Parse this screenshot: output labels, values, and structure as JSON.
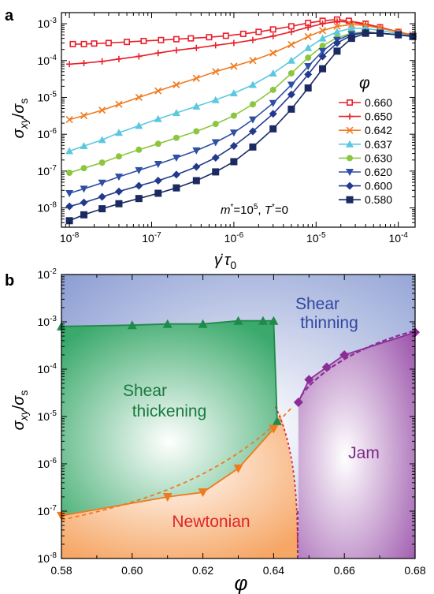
{
  "chart_data": [
    {
      "panel": "a",
      "type": "line",
      "ylabel": "σxy/σs",
      "xlabel": "γ̇τ0",
      "xscale": "log",
      "yscale": "log",
      "xlim": [
        8e-09,
        0.00016
      ],
      "ylim": [
        3e-09,
        0.002
      ],
      "xticks": [
        "10-8",
        "10-7",
        "10-6",
        "10-5",
        "10-4"
      ],
      "yticks": [
        "10-8",
        "10-7",
        "10-6",
        "10-5",
        "10-4",
        "10-3"
      ],
      "annotation": "m* =10^5, T* =0",
      "legend_title": "φ",
      "legend_position": "right",
      "series": [
        {
          "name": "0.660",
          "color": "#e8202a",
          "marker": "square-open",
          "points": [
            [
              1.1e-08,
              0.00028
            ],
            [
              1.5e-08,
              0.00028
            ],
            [
              2e-08,
              0.00029
            ],
            [
              3e-08,
              0.0003
            ],
            [
              5e-08,
              0.00032
            ],
            [
              8e-08,
              0.00034
            ],
            [
              1.3e-07,
              0.00036
            ],
            [
              2e-07,
              0.00038
            ],
            [
              3e-07,
              0.0004
            ],
            [
              5e-07,
              0.00043
            ],
            [
              8e-07,
              0.00047
            ],
            [
              1.3e-06,
              0.00053
            ],
            [
              2e-06,
              0.0006
            ],
            [
              3e-06,
              0.0007
            ],
            [
              5e-06,
              0.00085
            ],
            [
              8e-06,
              0.00105
            ],
            [
              1.2e-05,
              0.0012
            ],
            [
              1.8e-05,
              0.0013
            ],
            [
              2.5e-05,
              0.0012
            ],
            [
              4e-05,
              0.001
            ],
            [
              6e-05,
              0.0008
            ],
            [
              0.0001,
              0.0006
            ],
            [
              0.00015,
              0.00045
            ]
          ]
        },
        {
          "name": "0.650",
          "color": "#e8202a",
          "marker": "plus",
          "points": [
            [
              1e-08,
              8e-05
            ],
            [
              1.5e-08,
              8.5e-05
            ],
            [
              2.5e-08,
              9.5e-05
            ],
            [
              4e-08,
              0.00011
            ],
            [
              7e-08,
              0.00013
            ],
            [
              1.2e-07,
              0.00016
            ],
            [
              2e-07,
              0.00019
            ],
            [
              3.5e-07,
              0.00022
            ],
            [
              6e-07,
              0.00026
            ],
            [
              1e-06,
              0.0003
            ],
            [
              1.7e-06,
              0.00036
            ],
            [
              3e-06,
              0.00046
            ],
            [
              5e-06,
              0.0006
            ],
            [
              8e-06,
              0.0008
            ],
            [
              1.2e-05,
              0.001
            ],
            [
              1.8e-05,
              0.00115
            ],
            [
              2.7e-05,
              0.0011
            ],
            [
              4e-05,
              0.00095
            ],
            [
              6e-05,
              0.0008
            ],
            [
              0.0001,
              0.0006
            ],
            [
              0.00015,
              0.00045
            ]
          ]
        },
        {
          "name": "0.642",
          "color": "#f07a1e",
          "marker": "x",
          "points": [
            [
              1e-08,
              2.5e-06
            ],
            [
              1.5e-08,
              3.2e-06
            ],
            [
              2.5e-08,
              4.5e-06
            ],
            [
              4e-08,
              6.5e-06
            ],
            [
              7e-08,
              1e-05
            ],
            [
              1.2e-07,
              1.5e-05
            ],
            [
              2e-07,
              2.2e-05
            ],
            [
              3.5e-07,
              3.3e-05
            ],
            [
              6e-07,
              5e-05
            ],
            [
              1e-06,
              7e-05
            ],
            [
              1.7e-06,
              0.0001
            ],
            [
              3e-06,
              0.00016
            ],
            [
              5e-06,
              0.00027
            ],
            [
              8e-06,
              0.00045
            ],
            [
              1.2e-05,
              0.00065
            ],
            [
              1.8e-05,
              0.00085
            ],
            [
              2.7e-05,
              0.00095
            ],
            [
              4e-05,
              0.0009
            ],
            [
              6e-05,
              0.00075
            ],
            [
              0.0001,
              0.0006
            ],
            [
              0.00015,
              0.0005
            ]
          ]
        },
        {
          "name": "0.637",
          "color": "#5bc8e0",
          "marker": "triangle",
          "points": [
            [
              1e-08,
              3.5e-07
            ],
            [
              1.5e-08,
              4.8e-07
            ],
            [
              2.5e-08,
              7e-07
            ],
            [
              4e-08,
              1.1e-06
            ],
            [
              7e-08,
              1.7e-06
            ],
            [
              1.2e-07,
              2.6e-06
            ],
            [
              2e-07,
              3.8e-06
            ],
            [
              3.5e-07,
              5.7e-06
            ],
            [
              6e-07,
              8.5e-06
            ],
            [
              1e-06,
              1.3e-05
            ],
            [
              1.7e-06,
              2.2e-05
            ],
            [
              3e-06,
              4.5e-05
            ],
            [
              5e-06,
              0.0001
            ],
            [
              8e-06,
              0.00022
            ],
            [
              1.2e-05,
              0.0004
            ],
            [
              1.8e-05,
              0.0006
            ],
            [
              2.7e-05,
              0.00075
            ],
            [
              4e-05,
              0.00075
            ],
            [
              6e-05,
              0.00065
            ],
            [
              0.0001,
              0.00055
            ],
            [
              0.00015,
              0.00045
            ]
          ]
        },
        {
          "name": "0.630",
          "color": "#8cc63f",
          "marker": "circle",
          "points": [
            [
              1e-08,
              9e-08
            ],
            [
              1.5e-08,
              1.2e-07
            ],
            [
              2.5e-08,
              1.7e-07
            ],
            [
              4e-08,
              2.5e-07
            ],
            [
              7e-08,
              3.8e-07
            ],
            [
              1.2e-07,
              5.5e-07
            ],
            [
              2e-07,
              8e-07
            ],
            [
              3.5e-07,
              1.2e-06
            ],
            [
              6e-07,
              1.9e-06
            ],
            [
              1e-06,
              3.2e-06
            ],
            [
              1.7e-06,
              6.5e-06
            ],
            [
              3e-06,
              1.6e-05
            ],
            [
              5e-06,
              4.5e-05
            ],
            [
              8e-06,
              0.00012
            ],
            [
              1.2e-05,
              0.00025
            ],
            [
              1.8e-05,
              0.00042
            ],
            [
              2.7e-05,
              0.00055
            ],
            [
              4e-05,
              0.0006
            ],
            [
              6e-05,
              0.00055
            ],
            [
              0.0001,
              0.0005
            ],
            [
              0.00015,
              0.00045
            ]
          ]
        },
        {
          "name": "0.620",
          "color": "#2e4fa3",
          "marker": "triangle-down",
          "points": [
            [
              1e-08,
              2.5e-08
            ],
            [
              1.5e-08,
              3.3e-08
            ],
            [
              2.5e-08,
              4.8e-08
            ],
            [
              4e-08,
              7e-08
            ],
            [
              7e-08,
              1.05e-07
            ],
            [
              1.2e-07,
              1.55e-07
            ],
            [
              2e-07,
              2.3e-07
            ],
            [
              3.5e-07,
              3.6e-07
            ],
            [
              6e-07,
              6e-07
            ],
            [
              1e-06,
              1.1e-06
            ],
            [
              1.7e-06,
              2.5e-06
            ],
            [
              3e-06,
              7e-06
            ],
            [
              5e-06,
              2.2e-05
            ],
            [
              8e-06,
              7e-05
            ],
            [
              1.2e-05,
              0.00018
            ],
            [
              1.8e-05,
              0.00036
            ],
            [
              2.7e-05,
              0.00052
            ],
            [
              4e-05,
              0.00058
            ],
            [
              6e-05,
              0.00055
            ],
            [
              0.0001,
              0.0005
            ],
            [
              0.00015,
              0.00045
            ]
          ]
        },
        {
          "name": "0.600",
          "color": "#233a8c",
          "marker": "diamond",
          "points": [
            [
              1e-08,
              1.1e-08
            ],
            [
              1.5e-08,
              1.4e-08
            ],
            [
              2.5e-08,
              2e-08
            ],
            [
              4e-08,
              2.8e-08
            ],
            [
              7e-08,
              4e-08
            ],
            [
              1.2e-07,
              5.5e-08
            ],
            [
              2e-07,
              8e-08
            ],
            [
              3.5e-07,
              1.3e-07
            ],
            [
              6e-07,
              2.3e-07
            ],
            [
              1e-06,
              4.8e-07
            ],
            [
              1.7e-06,
              1.2e-06
            ],
            [
              3e-06,
              3.6e-06
            ],
            [
              5e-06,
              1.2e-05
            ],
            [
              8e-06,
              4.2e-05
            ],
            [
              1.2e-05,
              0.00013
            ],
            [
              1.8e-05,
              0.0003
            ],
            [
              2.7e-05,
              0.00048
            ],
            [
              4e-05,
              0.00058
            ],
            [
              6e-05,
              0.00055
            ],
            [
              0.0001,
              0.0005
            ],
            [
              0.00015,
              0.00045
            ]
          ]
        },
        {
          "name": "0.580",
          "color": "#1b2a60",
          "marker": "square",
          "points": [
            [
              1e-08,
              4.5e-09
            ],
            [
              1.5e-08,
              6.5e-09
            ],
            [
              2.5e-08,
              9.5e-09
            ],
            [
              4e-08,
              1.3e-08
            ],
            [
              7e-08,
              1.8e-08
            ],
            [
              1.2e-07,
              2.5e-08
            ],
            [
              2e-07,
              3.5e-08
            ],
            [
              3.5e-07,
              5.5e-08
            ],
            [
              6e-07,
              9.5e-08
            ],
            [
              1e-06,
              1.8e-07
            ],
            [
              1.7e-06,
              4.5e-07
            ],
            [
              3e-06,
              1.4e-06
            ],
            [
              5e-06,
              4.8e-06
            ],
            [
              8e-06,
              1.8e-05
            ],
            [
              1.2e-05,
              6e-05
            ],
            [
              1.8e-05,
              0.00018
            ],
            [
              2.7e-05,
              0.0004
            ],
            [
              4e-05,
              0.00055
            ],
            [
              6e-05,
              0.00055
            ],
            [
              0.0001,
              0.0005
            ],
            [
              0.00015,
              0.00045
            ]
          ]
        }
      ]
    },
    {
      "panel": "b",
      "type": "line",
      "ylabel": "σxy/σs",
      "xlabel": "φ",
      "xscale": "linear",
      "yscale": "log",
      "xlim": [
        0.58,
        0.68
      ],
      "ylim": [
        1e-08,
        0.01
      ],
      "xticks": [
        "0.58",
        "0.60",
        "0.62",
        "0.64",
        "0.66",
        "0.68"
      ],
      "yticks": [
        "10-8",
        "10-7",
        "10-6",
        "10-5",
        "10-4",
        "10-3",
        "10-2"
      ],
      "regions": [
        "Shear thinning",
        "Shear thickening",
        "Newtonian",
        "Jam"
      ],
      "series": [
        {
          "label": "thickening boundary",
          "color": "#1f8a4a",
          "marker": "triangle",
          "points": [
            [
              0.58,
              0.0008
            ],
            [
              0.6,
              0.00085
            ],
            [
              0.61,
              0.0009
            ],
            [
              0.62,
              0.0009
            ],
            [
              0.63,
              0.00105
            ],
            [
              0.637,
              0.00105
            ],
            [
              0.64,
              0.00105
            ],
            [
              0.641,
              8e-06
            ]
          ]
        },
        {
          "label": "newtonian boundary",
          "color": "#f07a1e",
          "marker": "triangle-down",
          "points": [
            [
              0.58,
              8e-08
            ],
            [
              0.61,
              2e-07
            ],
            [
              0.62,
              2.5e-07
            ],
            [
              0.63,
              8e-07
            ],
            [
              0.64,
              5.5e-06
            ]
          ]
        },
        {
          "label": "jamming boundary",
          "color": "#8b2d96",
          "marker": "diamond",
          "points": [
            [
              0.647,
              2e-05
            ],
            [
              0.65,
              6e-05
            ],
            [
              0.655,
              0.00011
            ],
            [
              0.66,
              0.0002
            ],
            [
              0.68,
              0.0006
            ]
          ]
        }
      ]
    }
  ],
  "labels": {
    "panel_a": "a",
    "panel_b": "b",
    "legend_title": "φ",
    "annotation_m": "m",
    "annotation_m_exp": "5",
    "annotation_T": "T",
    "annotation_zero": "=0",
    "region_shear_thinning_1": "Shear",
    "region_shear_thinning_2": "thinning",
    "region_shear_thickening_1": "Shear",
    "region_shear_thickening_2": "thickening",
    "region_newtonian": "Newtonian",
    "region_jam": "Jam"
  }
}
